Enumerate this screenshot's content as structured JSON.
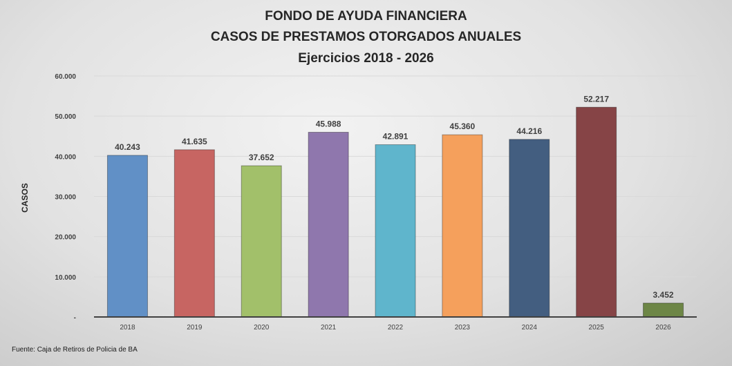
{
  "chart_data": {
    "type": "bar",
    "title": [
      "FONDO DE AYUDA FINANCIERA",
      "CASOS DE PRESTAMOS OTORGADOS ANUALES",
      "Ejercicios 2018 - 2026"
    ],
    "ylabel": "CASOS",
    "xlabel": "",
    "categories": [
      "2018",
      "2019",
      "2020",
      "2021",
      "2022",
      "2023",
      "2024",
      "2025",
      "2026"
    ],
    "values": [
      40243,
      41635,
      37652,
      45988,
      42891,
      45360,
      44216,
      52217,
      3452
    ],
    "data_labels": [
      "40.243",
      "41.635",
      "37.652",
      "45.988",
      "42.891",
      "45.360",
      "44.216",
      "52.217",
      "3.452"
    ],
    "colors": [
      "#6190c6",
      "#c76562",
      "#a2c06a",
      "#8f77ad",
      "#5fb5cc",
      "#f5a05c",
      "#435e80",
      "#864446",
      "#6d8646"
    ],
    "ylim": [
      0,
      60000
    ],
    "yticks": [
      0,
      10000,
      20000,
      30000,
      40000,
      50000,
      60000
    ],
    "ytick_labels": [
      "-",
      "10.000",
      "20.000",
      "30.000",
      "40.000",
      "50.000",
      "60.000"
    ],
    "grid": true,
    "legend": "none"
  },
  "source": "Fuente: Caja de Retiros de Policia de BA"
}
